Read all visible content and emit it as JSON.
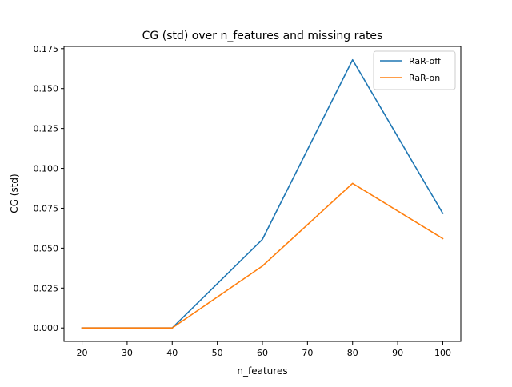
{
  "chart_data": {
    "type": "line",
    "title": "CG (std) over n_features and missing rates",
    "xlabel": "n_features",
    "ylabel": "CG (std)",
    "x": [
      20,
      40,
      60,
      80,
      100
    ],
    "xlim": [
      16,
      104
    ],
    "ylim": [
      -0.0084,
      0.1764
    ],
    "xticks": [
      20,
      30,
      40,
      50,
      60,
      70,
      80,
      90,
      100
    ],
    "xtick_labels": [
      "20",
      "30",
      "40",
      "50",
      "60",
      "70",
      "80",
      "90",
      "100"
    ],
    "yticks": [
      0,
      0.025,
      0.05,
      0.075,
      0.1,
      0.125,
      0.15,
      0.175
    ],
    "ytick_labels": [
      "0.000",
      "0.025",
      "0.050",
      "0.075",
      "0.100",
      "0.125",
      "0.150",
      "0.175"
    ],
    "grid": false,
    "legend_position": "top-right",
    "series": [
      {
        "name": "RaR-off",
        "color": "#1f77b4",
        "values": [
          0.0,
          0.0,
          0.0555,
          0.168,
          0.0718
        ]
      },
      {
        "name": "RaR-on",
        "color": "#ff7f0e",
        "values": [
          0.0,
          0.0,
          0.0388,
          0.0906,
          0.056
        ]
      }
    ]
  }
}
